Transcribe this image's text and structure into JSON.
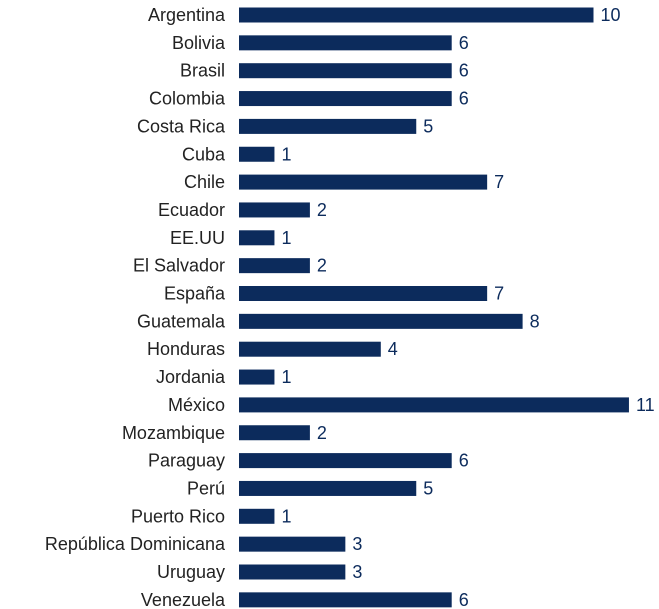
{
  "chart_data": {
    "type": "bar",
    "orientation": "horizontal",
    "categories": [
      "Argentina",
      "Bolivia",
      "Brasil",
      "Colombia",
      "Costa Rica",
      "Cuba",
      "Chile",
      "Ecuador",
      "EE.UU",
      "El Salvador",
      "España",
      "Guatemala",
      "Honduras",
      "Jordania",
      "México",
      "Mozambique",
      "Paraguay",
      "Perú",
      "Puerto Rico",
      "República Dominicana",
      "Uruguay",
      "Venezuela"
    ],
    "values": [
      10,
      6,
      6,
      6,
      5,
      1,
      7,
      2,
      1,
      2,
      7,
      8,
      4,
      1,
      11,
      2,
      6,
      5,
      1,
      3,
      3,
      6
    ],
    "title": "",
    "xlabel": "",
    "ylabel": "",
    "xlim": [
      0,
      11
    ],
    "grid": false,
    "bar_color": "#0c2b5c",
    "label_color": "#0c2b5c"
  }
}
